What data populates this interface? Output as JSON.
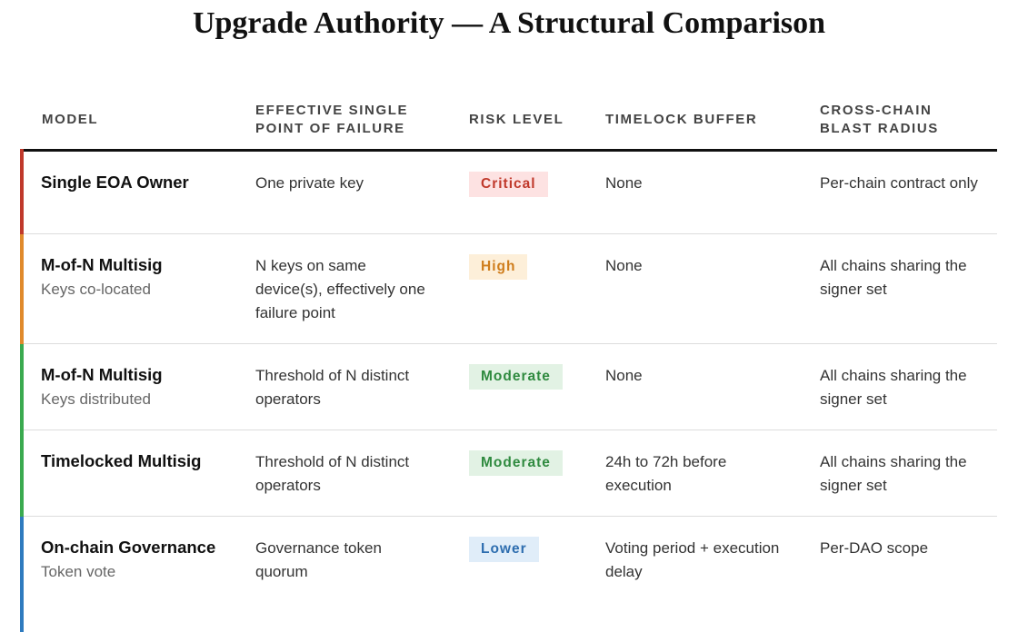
{
  "title": "Upgrade Authority — A Structural Comparison",
  "table": {
    "headers": [
      "MODEL",
      "EFFECTIVE SINGLE POINT OF FAILURE",
      "RISK LEVEL",
      "TIMELOCK BUFFER",
      "CROSS-CHAIN BLAST RADIUS"
    ],
    "rows": [
      {
        "model": "Single EOA Owner",
        "failure": "One private key",
        "risk": "Critical",
        "timelock": "None",
        "blast": "Per-chain contract only"
      },
      {
        "model": "M-of-N Multisig",
        "sub": "Keys co-located",
        "failure": "N keys on same device(s), effectively one failure point",
        "risk": "High",
        "timelock": "None",
        "blast": "All chains sharing the signer set"
      },
      {
        "model": "M-of-N Multisig",
        "sub": "Keys distributed",
        "failure": "Threshold of N distinct operators",
        "risk": "Moderate",
        "timelock": "None",
        "blast": "All chains sharing the signer set"
      },
      {
        "model": "Timelocked Multisig",
        "failure": "Threshold of N distinct operators",
        "risk": "Moderate",
        "timelock": "24h to 72h before execution",
        "blast": "All chains sharing the signer set"
      },
      {
        "model": "On-chain Governance",
        "sub": "Token vote",
        "failure": "Governance token quorum",
        "risk": "Lower",
        "timelock": "Voting period + execution delay",
        "blast": "Per-DAO scope"
      }
    ]
  }
}
